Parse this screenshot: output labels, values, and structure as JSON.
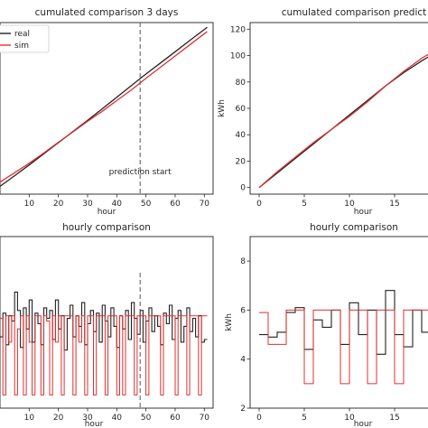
{
  "colors": {
    "real": "#222222",
    "sim": "#e03030",
    "vline": "#555555"
  },
  "chart_data": [
    {
      "type": "line",
      "title": "cumulated comparison 3 days",
      "xlabel": "hour",
      "ylabel": "",
      "xticks": [
        10,
        20,
        30,
        40,
        50,
        60,
        70
      ],
      "xlim": [
        0,
        73
      ],
      "ylim": [
        0,
        400
      ],
      "legend": {
        "placement": "top-left",
        "entries": [
          "real",
          "sim"
        ]
      },
      "annotation": {
        "text": "prediction start",
        "x": 48
      },
      "series": [
        {
          "name": "real",
          "x": [
            0,
            5,
            10,
            15,
            20,
            25,
            30,
            35,
            40,
            45,
            50,
            55,
            60,
            65,
            70,
            71
          ],
          "y": [
            18,
            43,
            68,
            94,
            120,
            146,
            172,
            199,
            226,
            253,
            280,
            306,
            332,
            358,
            384,
            389
          ]
        },
        {
          "name": "sim",
          "x": [
            0,
            5,
            10,
            15,
            20,
            25,
            30,
            35,
            40,
            45,
            50,
            55,
            60,
            65,
            70,
            71
          ],
          "y": [
            28,
            50,
            72,
            96,
            121,
            145,
            170,
            193,
            218,
            243,
            270,
            296,
            322,
            348,
            374,
            379
          ]
        }
      ]
    },
    {
      "type": "line",
      "title": "cumulated comparison predict",
      "xlabel": "hour",
      "ylabel": "kWh",
      "xticks": [
        0,
        5,
        10,
        15
      ],
      "yticks": [
        0,
        20,
        40,
        60,
        80,
        100,
        120
      ],
      "xlim": [
        -1,
        19
      ],
      "ylim": [
        -5,
        125
      ],
      "series": [
        {
          "name": "real",
          "x": [
            0,
            2,
            4,
            6,
            8,
            10,
            12,
            14,
            16,
            18,
            19
          ],
          "y": [
            0,
            11,
            22,
            33,
            44,
            55,
            66,
            77,
            87,
            96,
            100
          ]
        },
        {
          "name": "sim",
          "x": [
            0,
            2,
            4,
            6,
            8,
            10,
            12,
            14,
            16,
            18,
            19
          ],
          "y": [
            0,
            12,
            23,
            34,
            44,
            54,
            65,
            77,
            88,
            98,
            102
          ]
        }
      ]
    },
    {
      "type": "line",
      "title": "hourly comparison",
      "xlabel": "hour",
      "ylabel": "",
      "xticks": [
        10,
        20,
        30,
        40,
        50,
        60,
        70
      ],
      "xlim": [
        0,
        73
      ],
      "ylim": [
        2.5,
        9
      ],
      "prediction_x": 48,
      "series": [
        {
          "name": "real",
          "y": [
            5.2,
            6.1,
            4.9,
            6.0,
            5.8,
            6.9,
            6.2,
            4.8,
            6.3,
            5.5,
            6.6,
            5.0,
            6.1,
            5.7,
            4.9,
            6.3,
            5.9,
            6.2,
            5.1,
            6.6,
            5.5,
            6.0,
            4.7,
            5.9,
            6.4,
            5.2,
            6.0,
            5.6,
            6.5,
            4.9,
            5.7,
            6.2,
            5.4,
            6.1,
            5.0,
            6.4,
            5.8,
            5.2,
            6.3,
            5.6,
            4.8,
            6.0,
            5.5,
            6.2,
            5.1,
            6.5,
            5.9,
            5.3,
            6.2,
            5.0,
            5.8,
            6.3,
            5.4,
            6.0,
            5.6,
            4.9,
            6.1,
            5.7,
            6.4,
            5.1,
            5.9,
            6.2,
            5.0,
            5.6,
            6.3,
            5.4,
            5.9,
            5.2,
            6.0,
            5.0,
            5.1
          ]
        },
        {
          "name": "sim",
          "y": [
            5.9,
            3.0,
            6.0,
            5.0,
            6.0,
            3.0,
            5.5,
            6.0,
            3.0,
            6.0,
            5.0,
            3.0,
            6.0,
            6.0,
            3.0,
            6.0,
            5.8,
            3.0,
            6.0,
            5.0,
            6.0,
            3.0,
            6.0,
            6.0,
            6.0,
            3.0,
            6.0,
            5.0,
            6.0,
            3.0,
            6.0,
            6.0,
            3.0,
            6.0,
            6.0,
            6.0,
            3.0,
            6.0,
            6.0,
            6.0,
            3.0,
            6.0,
            3.0,
            6.0,
            6.0,
            6.0,
            3.0,
            6.0,
            6.0,
            6.0,
            3.0,
            6.0,
            6.0,
            6.0,
            6.0,
            3.0,
            6.0,
            6.0,
            6.0,
            6.0,
            3.0,
            6.0,
            6.0,
            6.0,
            3.0,
            6.0,
            6.0,
            6.0,
            3.0,
            6.0,
            6.0
          ]
        }
      ]
    },
    {
      "type": "line",
      "title": "hourly comparison",
      "xlabel": "hour",
      "ylabel": "kWh",
      "xticks": [
        0,
        5,
        10,
        15
      ],
      "yticks": [
        2,
        4,
        6,
        8
      ],
      "xlim": [
        -1,
        19
      ],
      "ylim": [
        2,
        9
      ],
      "series": [
        {
          "name": "real",
          "y": [
            5.0,
            4.9,
            5.1,
            5.9,
            6.1,
            4.4,
            5.6,
            5.3,
            6.0,
            4.6,
            6.3,
            5.0,
            6.0,
            4.2,
            6.8,
            5.0,
            4.5,
            6.0,
            5.1
          ]
        },
        {
          "name": "sim",
          "y": [
            5.9,
            4.6,
            4.6,
            6.0,
            6.0,
            3.0,
            6.0,
            6.0,
            6.0,
            3.0,
            6.0,
            6.0,
            3.0,
            6.0,
            6.0,
            3.0,
            6.0,
            6.0,
            6.0
          ]
        }
      ]
    }
  ]
}
